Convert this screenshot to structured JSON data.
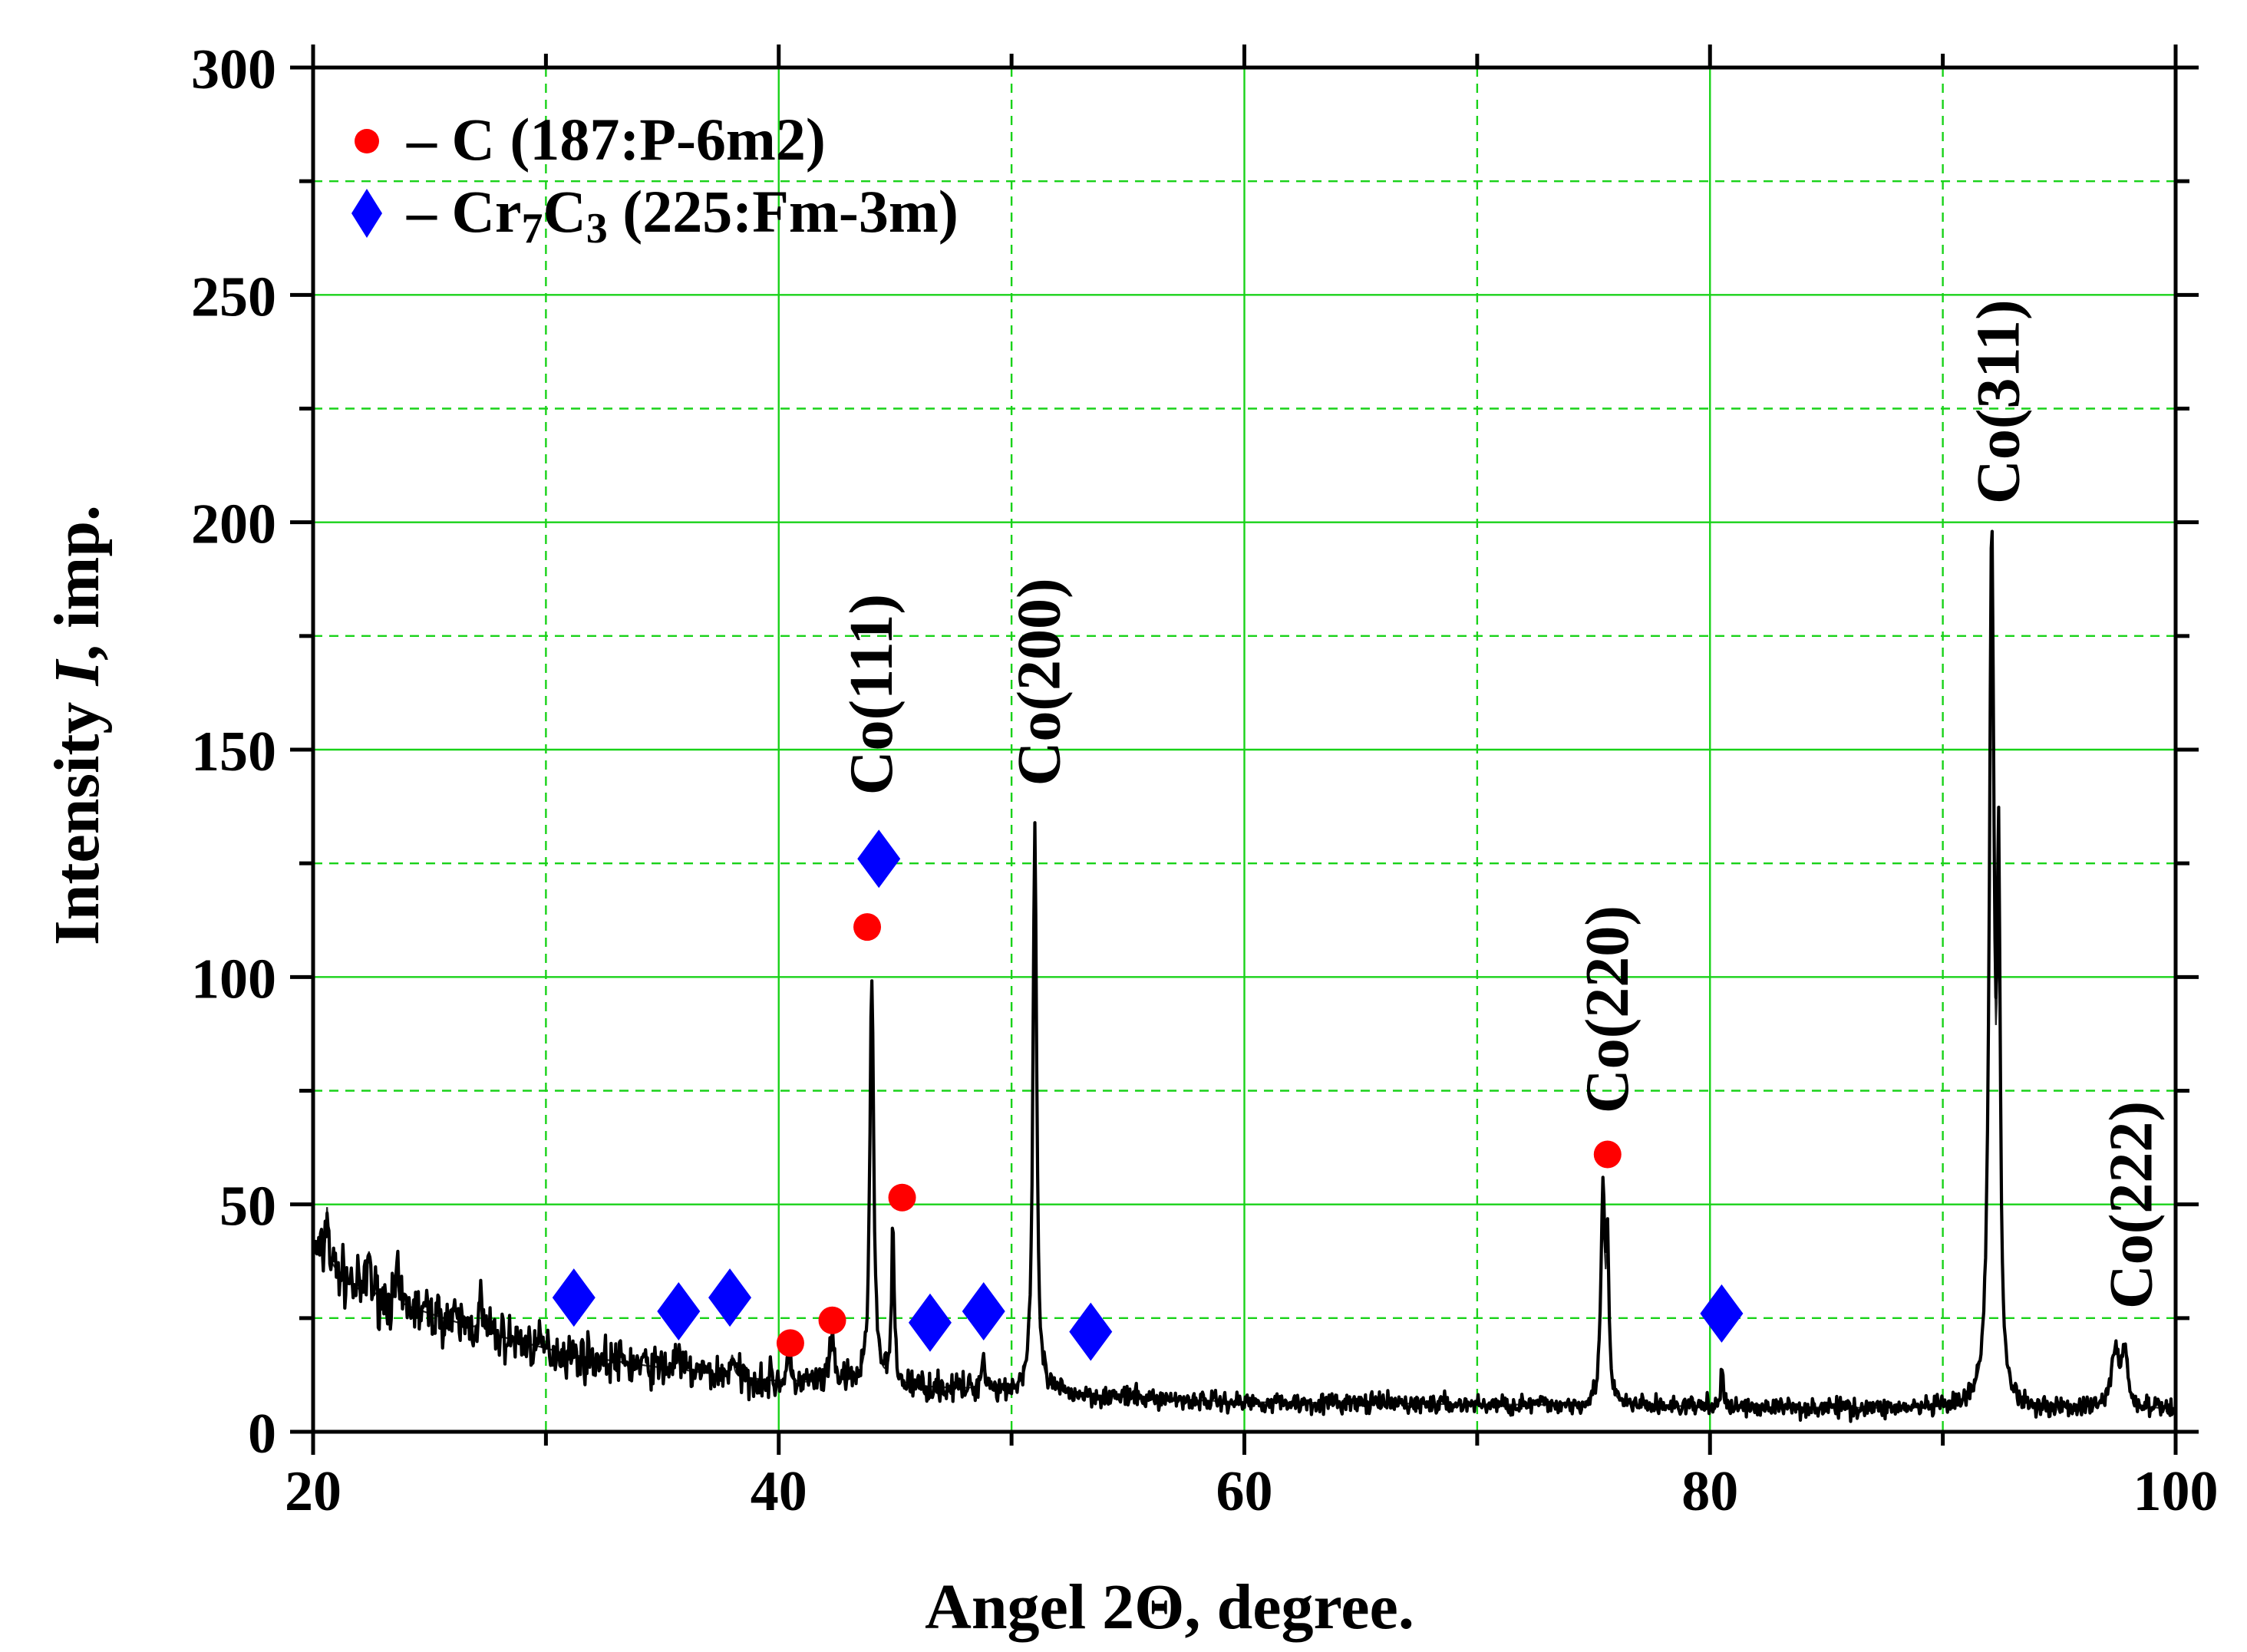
{
  "chart_data": {
    "type": "line",
    "title": "",
    "xlabel": "Angel 2Θ, degree.",
    "ylabel_parts": {
      "before": "Intensity ",
      "italic": "I",
      "after": ", imp."
    },
    "xlim": [
      20,
      100
    ],
    "ylim": [
      0,
      300
    ],
    "x_major_ticks": [
      20,
      40,
      60,
      80,
      100
    ],
    "x_minor_ticks": [
      30,
      50,
      70,
      90
    ],
    "y_major_ticks": [
      0,
      50,
      100,
      150,
      200,
      250,
      300
    ],
    "y_minor_ticks": [
      25,
      75,
      125,
      175,
      225,
      275
    ],
    "x_tick_labels": [
      "20",
      "40",
      "60",
      "80",
      "100"
    ],
    "y_tick_labels": [
      "0",
      "50",
      "100",
      "150",
      "200",
      "250",
      "300"
    ],
    "grid": true,
    "background": {
      "knots": [
        [
          20,
          40
        ],
        [
          22,
          31
        ],
        [
          25,
          26
        ],
        [
          28,
          21
        ],
        [
          31,
          17
        ],
        [
          35,
          14
        ],
        [
          40,
          11
        ],
        [
          45,
          10
        ],
        [
          50,
          9
        ],
        [
          55,
          7.5
        ],
        [
          60,
          6.5
        ],
        [
          70,
          6
        ],
        [
          80,
          5.5
        ],
        [
          90,
          5
        ],
        [
          100,
          5
        ]
      ]
    },
    "peaks": [
      {
        "x": 20.6,
        "height": 13,
        "width": 0.06
      },
      {
        "x": 22.4,
        "height": 10,
        "width": 0.07
      },
      {
        "x": 23.6,
        "height": 6,
        "width": 0.07
      },
      {
        "x": 27.2,
        "height": 7,
        "width": 0.07
      },
      {
        "x": 35.6,
        "height": 5,
        "width": 0.08
      },
      {
        "x": 38.0,
        "height": 5,
        "width": 0.08
      },
      {
        "x": 40.4,
        "height": 5,
        "width": 0.08
      },
      {
        "x": 42.3,
        "height": 9,
        "width": 0.12
      },
      {
        "x": 44.0,
        "height": 90,
        "width": 0.1
      },
      {
        "x": 44.9,
        "height": 33,
        "width": 0.07
      },
      {
        "x": 48.8,
        "height": 7,
        "width": 0.1
      },
      {
        "x": 51.0,
        "height": 126,
        "width": 0.09
      },
      {
        "x": 75.4,
        "height": 47,
        "width": 0.1
      },
      {
        "x": 75.6,
        "height": 30,
        "width": 0.07
      },
      {
        "x": 80.5,
        "height": 8,
        "width": 0.06
      },
      {
        "x": 92.1,
        "height": 190,
        "width": 0.12
      },
      {
        "x": 92.4,
        "height": 105,
        "width": 0.08
      },
      {
        "x": 97.4,
        "height": 13,
        "width": 0.18
      },
      {
        "x": 97.8,
        "height": 12,
        "width": 0.15
      }
    ],
    "noise": {
      "amplitude_low": 6,
      "amplitude_high": 2.2,
      "step": 0.04,
      "seed": 7
    },
    "series": [
      {
        "name": "C (187:P-6m2)",
        "marker": "circle",
        "color": "#ff0000",
        "points": [
          [
            40.5,
            19.5
          ],
          [
            42.3,
            24.5
          ],
          [
            43.8,
            111
          ],
          [
            45.3,
            51.5
          ],
          [
            75.6,
            61
          ]
        ]
      },
      {
        "name": "Cr7C3 (225:Fm-3m)",
        "marker": "diamond",
        "color": "#0000ff",
        "points": [
          [
            31.2,
            29.5
          ],
          [
            35.7,
            26.5
          ],
          [
            37.9,
            29.5
          ],
          [
            44.3,
            126
          ],
          [
            46.5,
            24
          ],
          [
            48.8,
            26.5
          ],
          [
            53.4,
            22
          ],
          [
            80.5,
            26
          ]
        ]
      }
    ],
    "legend": {
      "position": "top-left",
      "entries": [
        {
          "marker": "circle",
          "dash": "–",
          "formula": "C",
          "formula_sub": "",
          "formula_tail": "",
          "space_group": " (187:P-6m2)"
        },
        {
          "marker": "diamond",
          "dash": "–",
          "formula": "Cr",
          "formula_sub": "7",
          "formula_tail": "C",
          "formula_sub2": "3",
          "space_group": " (225:Fm-3m)"
        }
      ]
    },
    "peak_labels": [
      {
        "text": "Co(111)",
        "x": 44.0,
        "label_base_y": 140
      },
      {
        "text": "Co(200)",
        "x": 51.2,
        "label_base_y": 142
      },
      {
        "text": "Co(220)",
        "x": 75.6,
        "label_base_y": 70
      },
      {
        "text": "Co(311)",
        "x": 92.4,
        "label_base_y": 204
      },
      {
        "text": "Co(222)",
        "x": 98.1,
        "label_base_y": 27
      }
    ]
  }
}
